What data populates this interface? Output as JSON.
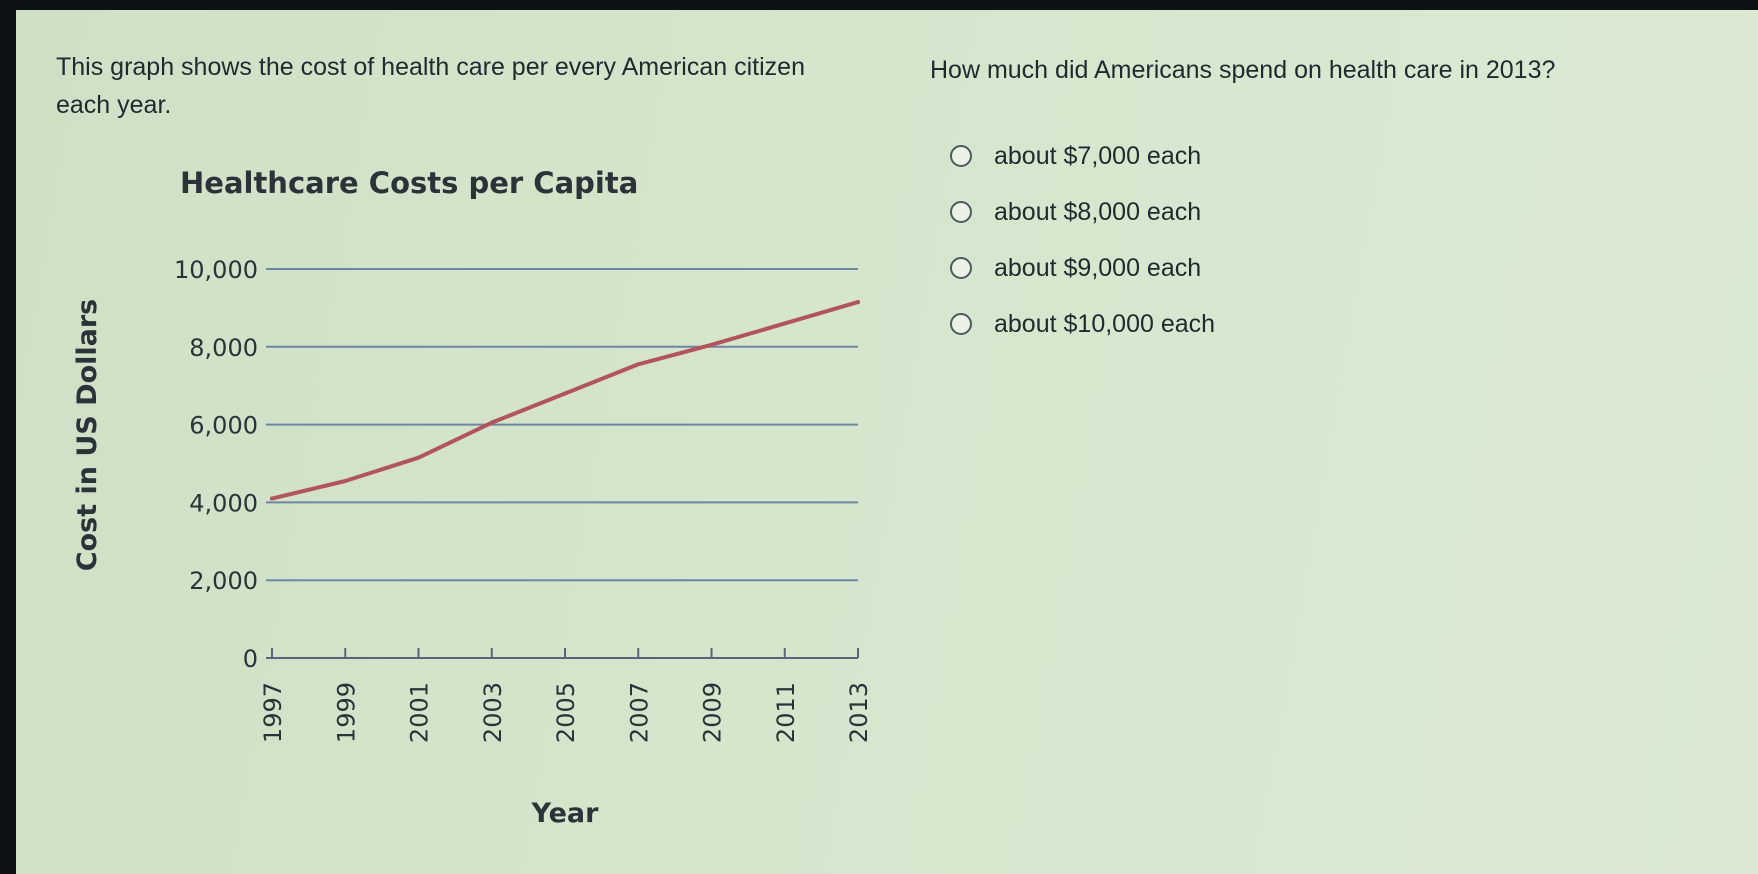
{
  "prompt": {
    "intro": "This graph shows the cost of health care per every American citizen each year.",
    "question": "How much did Americans spend on health care in 2013?",
    "choices": [
      "about $7,000 each",
      "about $8,000 each",
      "about $9,000 each",
      "about $10,000 each"
    ]
  },
  "colors": {
    "line": "#b2545c",
    "grid": "#6e86a4",
    "text": "#2a3438"
  },
  "chart_data": {
    "type": "line",
    "title": "Healthcare Costs per Capita",
    "xlabel": "Year",
    "ylabel": "Cost in US Dollars",
    "ylim": [
      0,
      10000
    ],
    "yticks": [
      0,
      2000,
      4000,
      6000,
      8000,
      10000
    ],
    "ytick_labels": [
      "0",
      "2,000",
      "4,000",
      "6,000",
      "8,000",
      "10,000"
    ],
    "xticks": [
      "1997",
      "1999",
      "2001",
      "2003",
      "2005",
      "2007",
      "2009",
      "2011",
      "2013"
    ],
    "grid": true,
    "series": [
      {
        "values": [
          4100,
          4550,
          5150,
          6050,
          6800,
          7550,
          8050,
          8600,
          9150
        ]
      }
    ]
  }
}
